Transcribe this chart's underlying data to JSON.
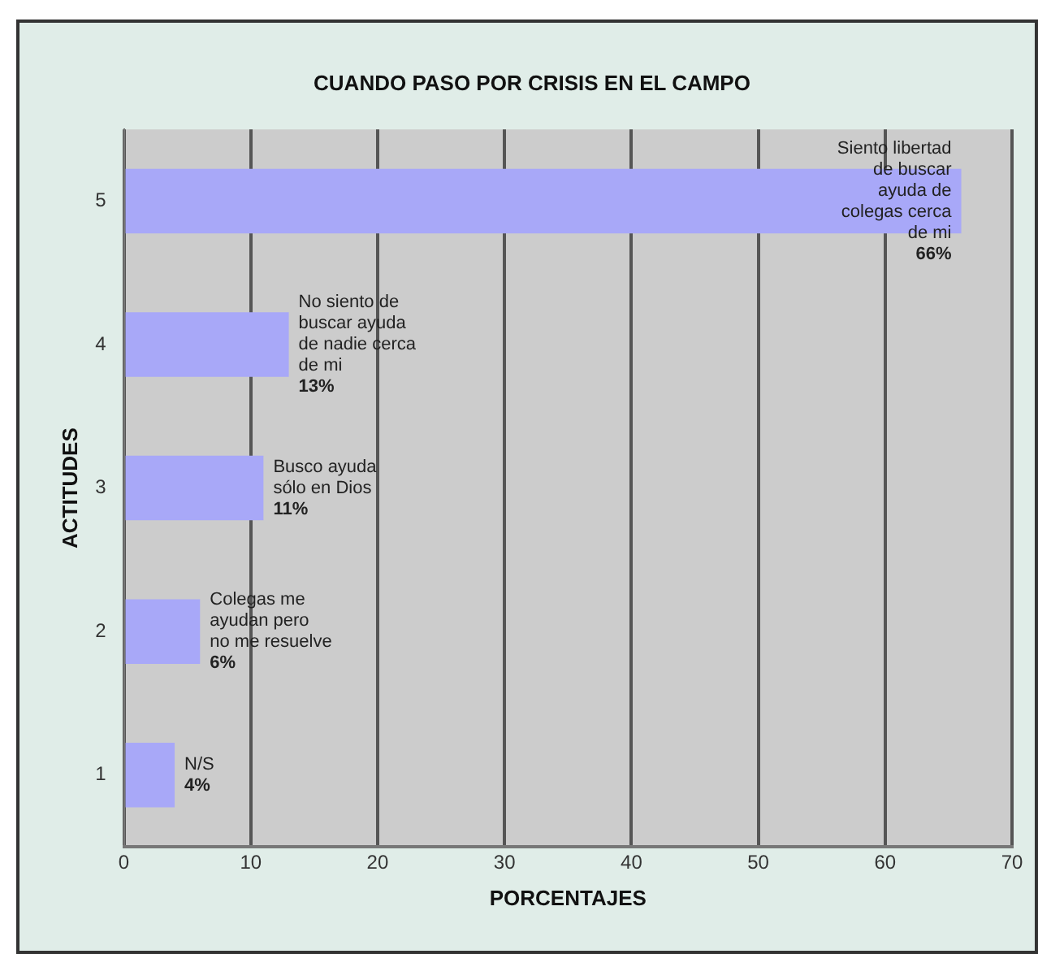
{
  "chart_data": {
    "type": "bar",
    "orientation": "horizontal",
    "title": "CUANDO PASO POR CRISIS EN EL CAMPO",
    "xlabel": "PORCENTAJES",
    "ylabel": "ACTITUDES",
    "categories": [
      "5",
      "4",
      "3",
      "2",
      "1"
    ],
    "values": [
      66,
      13,
      11,
      6,
      4
    ],
    "value_labels": [
      "Siento libertad\nde buscar\nayuda de\ncolegas cerca\nde mi\n66%",
      "No siento de\nbuscar ayuda\nde nadie cerca\nde mi\n13%",
      "Busco ayuda\nsólo en Dios\n11%",
      "Colegas me\nayudan pero\nno me resuelve\n6%",
      "N/S\n4%"
    ],
    "color": "#a8a8f8",
    "xlim": [
      0,
      70
    ],
    "xticks": [
      0,
      10,
      20,
      30,
      40,
      50,
      60,
      70
    ],
    "grid": "x",
    "legend": false
  }
}
